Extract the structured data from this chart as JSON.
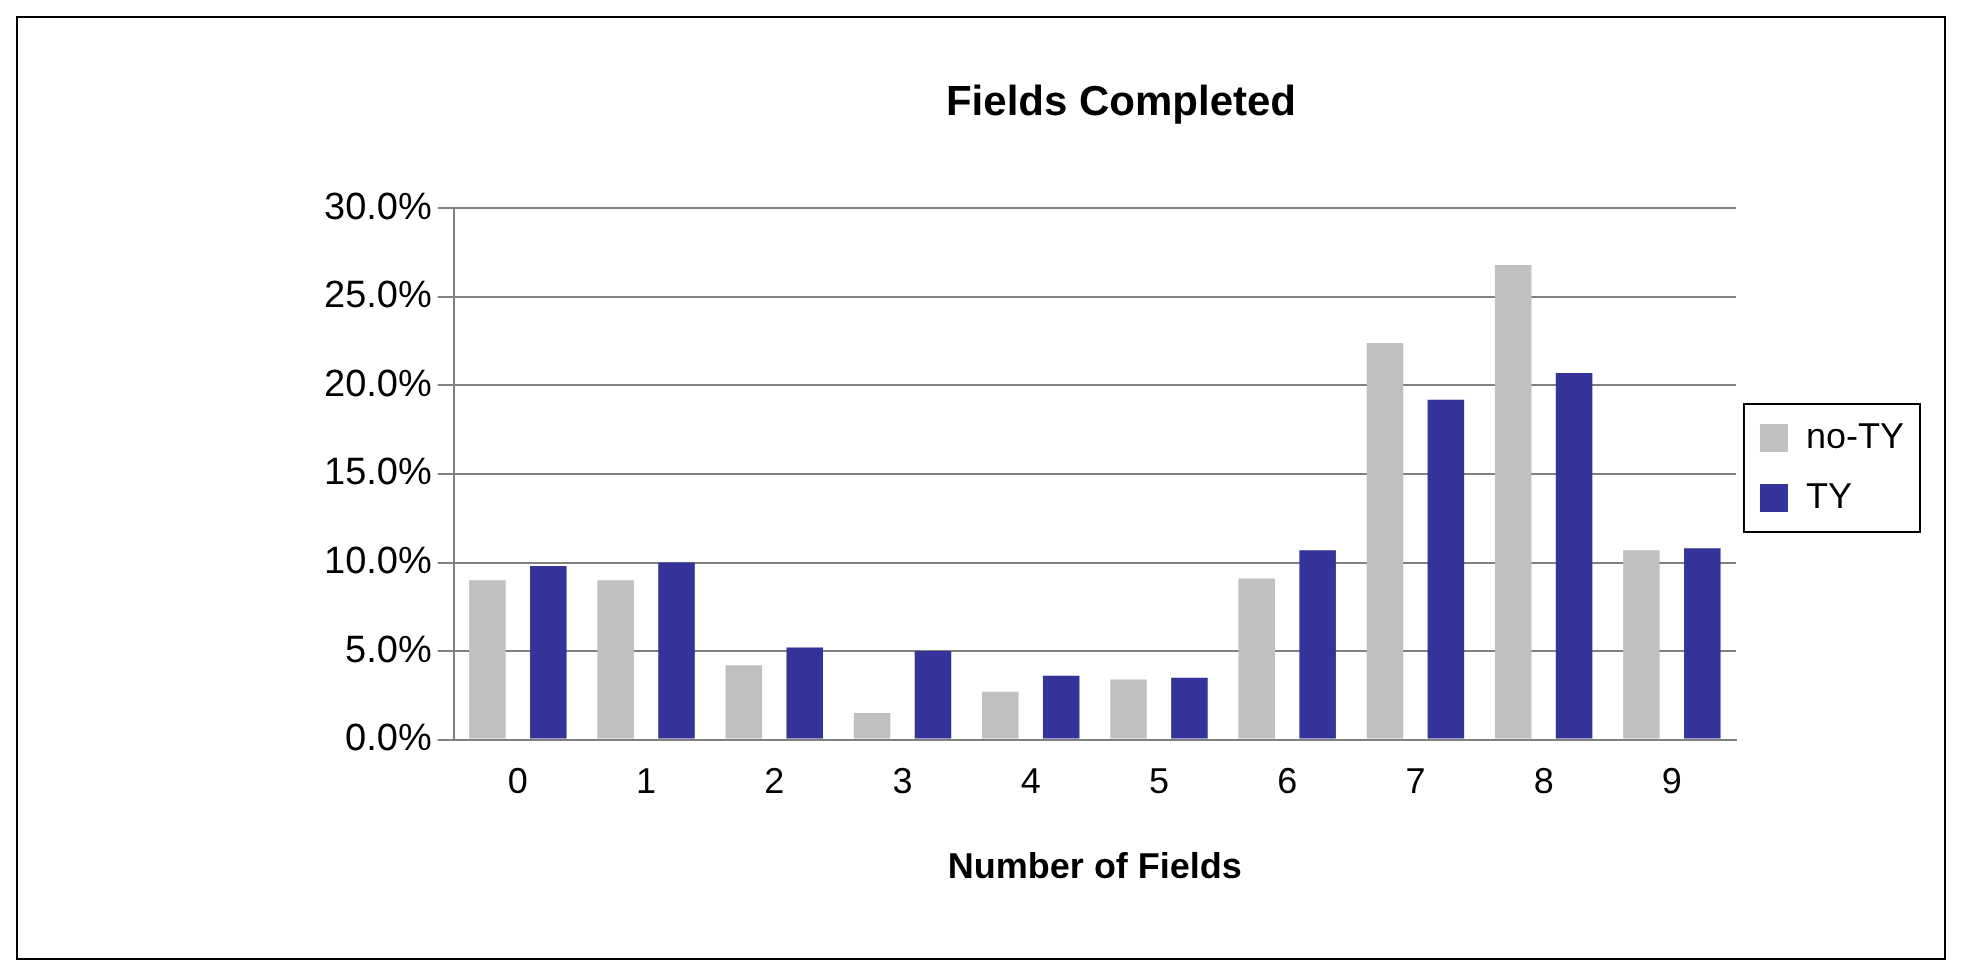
{
  "chart_data": {
    "type": "bar",
    "title": "Fields Completed",
    "xlabel": "Number of Fields",
    "categories": [
      "0",
      "1",
      "2",
      "3",
      "4",
      "5",
      "6",
      "7",
      "8",
      "9"
    ],
    "series": [
      {
        "name": "no-TY",
        "color": "#c0c0c0",
        "values": [
          9.0,
          9.0,
          4.2,
          1.5,
          2.7,
          3.4,
          9.1,
          22.4,
          26.8,
          10.7
        ]
      },
      {
        "name": "TY",
        "color": "#333399",
        "values": [
          9.8,
          10.0,
          5.2,
          5.0,
          3.6,
          3.5,
          10.7,
          19.2,
          20.7,
          10.8
        ]
      }
    ],
    "ylim": [
      0,
      30
    ],
    "yticks": [
      {
        "value": 0,
        "label": "0.0%"
      },
      {
        "value": 5,
        "label": "5.0%"
      },
      {
        "value": 10,
        "label": "10.0%"
      },
      {
        "value": 15,
        "label": "15.0%"
      },
      {
        "value": 20,
        "label": "20.0%"
      },
      {
        "value": 25,
        "label": "25.0%"
      },
      {
        "value": 30,
        "label": "30.0%"
      }
    ],
    "grid": "y",
    "legend": "right"
  }
}
